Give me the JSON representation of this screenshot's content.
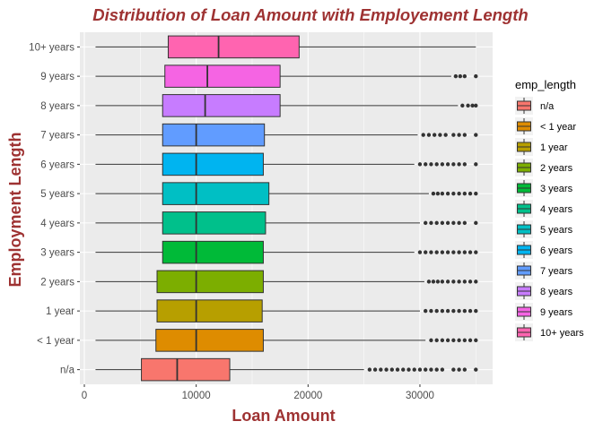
{
  "chart_data": {
    "type": "boxplot",
    "orientation": "horizontal",
    "title": "Distribution of Loan Amount with Employement Length",
    "xlabel": "Loan Amount",
    "ylabel": "Employment Length",
    "xlim": [
      -400,
      36500
    ],
    "x_ticks": [
      0,
      10000,
      20000,
      30000
    ],
    "x_tick_labels": [
      "0",
      "10000",
      "20000",
      "30000"
    ],
    "grid": true,
    "legend_position": "right",
    "legend_title": "emp_length",
    "colors": {
      "title": "#9E3232",
      "axis_title": "#9E3232",
      "panel": "#EBEBEB",
      "grid": "#FFFFFF",
      "outlier": "#333333"
    },
    "categories": [
      "n/a",
      "< 1 year",
      "1 year",
      "2 years",
      "3 years",
      "4 years",
      "5 years",
      "6 years",
      "7 years",
      "8 years",
      "9 years",
      "10+ years"
    ],
    "series": [
      {
        "name": "n/a",
        "color": "#F8766D",
        "min": 1000,
        "q1": 5100,
        "median": 8300,
        "q3": 13000,
        "max": 25000,
        "outliers": [
          25500,
          26000,
          26500,
          27000,
          27500,
          28000,
          28500,
          29000,
          29500,
          30000,
          30500,
          31000,
          31500,
          32000,
          33000,
          33500,
          34000,
          35000
        ]
      },
      {
        "name": "< 1 year",
        "color": "#DE8C00",
        "min": 1000,
        "q1": 6400,
        "median": 10000,
        "q3": 16000,
        "max": 30500,
        "outliers": [
          31000,
          31500,
          32000,
          32500,
          33000,
          33500,
          34000,
          34500,
          35000
        ]
      },
      {
        "name": "1 year",
        "color": "#B79F00",
        "min": 1000,
        "q1": 6500,
        "median": 10000,
        "q3": 15900,
        "max": 30000,
        "outliers": [
          30500,
          31000,
          31500,
          32000,
          32500,
          33000,
          33500,
          34000,
          34500,
          35000
        ]
      },
      {
        "name": "2 years",
        "color": "#7CAE00",
        "min": 1000,
        "q1": 6500,
        "median": 10000,
        "q3": 16000,
        "max": 30400,
        "outliers": [
          30800,
          31200,
          31600,
          32000,
          32500,
          33000,
          33500,
          34000,
          34500,
          35000
        ]
      },
      {
        "name": "3 years",
        "color": "#00BA38",
        "min": 1000,
        "q1": 7000,
        "median": 10000,
        "q3": 16000,
        "max": 29500,
        "outliers": [
          30000,
          30500,
          31000,
          31500,
          32000,
          32500,
          33000,
          33500,
          34000,
          34500,
          35000
        ]
      },
      {
        "name": "4 years",
        "color": "#00C08B",
        "min": 1000,
        "q1": 7000,
        "median": 10000,
        "q3": 16200,
        "max": 30000,
        "outliers": [
          30500,
          31000,
          31500,
          32000,
          32500,
          33000,
          33500,
          34000,
          35000
        ]
      },
      {
        "name": "5 years",
        "color": "#00BFC4",
        "min": 1000,
        "q1": 7000,
        "median": 10000,
        "q3": 16500,
        "max": 30800,
        "outliers": [
          31200,
          31600,
          32000,
          32500,
          33000,
          33500,
          34000,
          34500,
          35000
        ]
      },
      {
        "name": "6 years",
        "color": "#00B4F0",
        "min": 1000,
        "q1": 7000,
        "median": 10000,
        "q3": 16000,
        "max": 29500,
        "outliers": [
          30000,
          30500,
          31000,
          31500,
          32000,
          32500,
          33000,
          33500,
          34000,
          35000
        ]
      },
      {
        "name": "7 years",
        "color": "#619CFF",
        "min": 1000,
        "q1": 7000,
        "median": 10000,
        "q3": 16100,
        "max": 29800,
        "outliers": [
          30300,
          30800,
          31300,
          31800,
          32300,
          33000,
          33500,
          34000,
          35000
        ]
      },
      {
        "name": "8 years",
        "color": "#C77CFF",
        "min": 1000,
        "q1": 7000,
        "median": 10800,
        "q3": 17500,
        "max": 33400,
        "outliers": [
          33800,
          34300,
          34700,
          35000
        ]
      },
      {
        "name": "9 years",
        "color": "#F564E3",
        "min": 1000,
        "q1": 7200,
        "median": 11000,
        "q3": 17500,
        "max": 32800,
        "outliers": [
          33200,
          33600,
          34000,
          35000
        ]
      },
      {
        "name": "10+ years",
        "color": "#FF64B0",
        "min": 1000,
        "q1": 7500,
        "median": 12000,
        "q3": 19200,
        "max": 35000,
        "outliers": []
      }
    ]
  }
}
